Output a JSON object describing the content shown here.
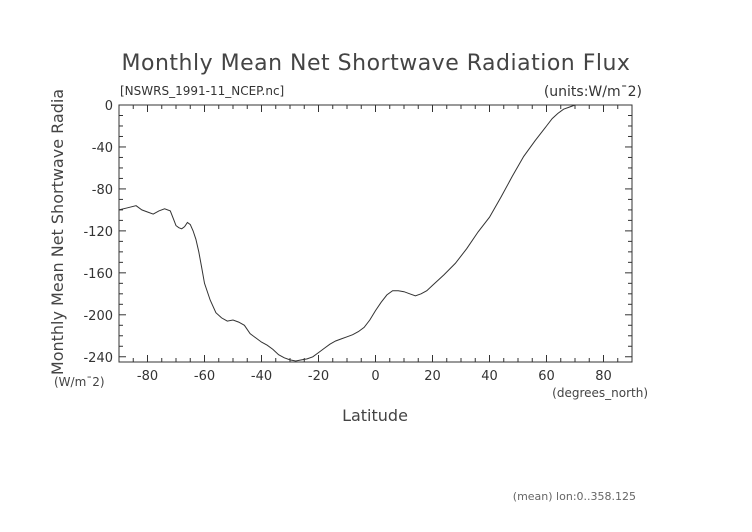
{
  "chart_data": {
    "type": "line",
    "title": "Monthly Mean Net Shortwave Radiation Flux",
    "subtitle": "[NSWRS_1991-11_NCEP.nc]",
    "units_label": "(units:W/m¯2)",
    "xlabel": "Latitude",
    "xunits": "(degrees_north)",
    "ylabel": "Monthly Mean Net Shortwave Radia",
    "yunits": "(W/m¯2)",
    "footnote": "(mean) lon:0..358.125",
    "xlim": [
      -90,
      90
    ],
    "ylim": [
      -245,
      0
    ],
    "xticks": [
      -80,
      -60,
      -40,
      -20,
      0,
      20,
      40,
      60,
      80
    ],
    "xtick_labels": [
      "-80",
      "-60",
      "-40",
      "-20",
      "0",
      "20",
      "40",
      "60",
      "80"
    ],
    "yticks": [
      0,
      -40,
      -80,
      -120,
      -160,
      -200,
      -240
    ],
    "ytick_labels": [
      "0",
      "-40",
      "-80",
      "-120",
      "-160",
      "-200",
      "-240"
    ],
    "grid": false,
    "series": [
      {
        "color": "#333333",
        "x": [
          -90,
          -87,
          -84,
          -82,
          -80,
          -78,
          -76,
          -74,
          -72,
          -71,
          -70,
          -69,
          -68,
          -67,
          -66,
          -65,
          -64,
          -63,
          -62,
          -61,
          -60,
          -58,
          -56,
          -54,
          -52,
          -50,
          -48,
          -46,
          -44,
          -42,
          -40,
          -38,
          -36,
          -34,
          -32,
          -30,
          -28,
          -26,
          -24,
          -22,
          -20,
          -18,
          -16,
          -14,
          -12,
          -10,
          -8,
          -6,
          -4,
          -2,
          0,
          2,
          4,
          6,
          8,
          10,
          12,
          14,
          16,
          18,
          20,
          24,
          28,
          32,
          36,
          40,
          44,
          48,
          52,
          56,
          60,
          62,
          64,
          66,
          68,
          70,
          72,
          75,
          80,
          85,
          90
        ],
        "y": [
          -100,
          -98,
          -96,
          -100,
          -102,
          -104,
          -101,
          -99,
          -101,
          -108,
          -115,
          -117,
          -118,
          -116,
          -112,
          -114,
          -120,
          -128,
          -140,
          -155,
          -170,
          -186,
          -198,
          -203,
          -206,
          -205,
          -207,
          -210,
          -218,
          -222,
          -226,
          -229,
          -233,
          -238,
          -241,
          -243,
          -244,
          -243,
          -242,
          -240,
          -236,
          -232,
          -228,
          -225,
          -223,
          -221,
          -219,
          -216,
          -212,
          -205,
          -196,
          -188,
          -181,
          -177,
          -177,
          -178,
          -180,
          -182,
          -180,
          -177,
          -172,
          -162,
          -151,
          -137,
          -121,
          -107,
          -88,
          -68,
          -49,
          -34,
          -20,
          -13,
          -8,
          -4,
          -2,
          0,
          0,
          0,
          0,
          0,
          0
        ]
      }
    ]
  }
}
